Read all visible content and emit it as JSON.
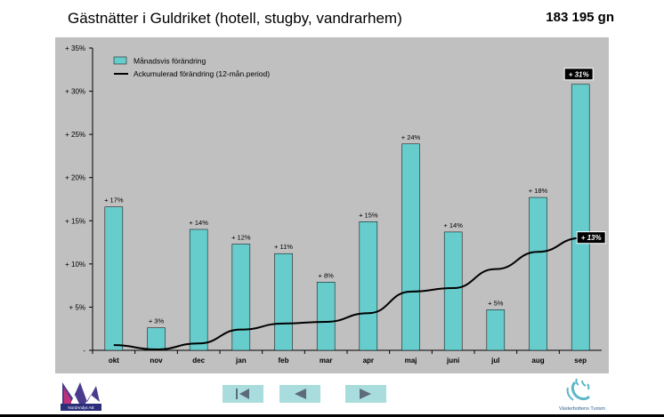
{
  "header": {
    "title": "Gästnätter i Guldriket (hotell, stugby, vandrarhem)",
    "total": "183 195 gn"
  },
  "chart_data": {
    "type": "bar",
    "categories": [
      "okt",
      "nov",
      "dec",
      "jan",
      "feb",
      "mar",
      "apr",
      "maj",
      "juni",
      "jul",
      "aug",
      "sep"
    ],
    "series": [
      {
        "name": "Månadsvis förändring",
        "type": "bar",
        "values": [
          17,
          3,
          14,
          12,
          11,
          8,
          15,
          24,
          14,
          5,
          18,
          31
        ],
        "labels": [
          "+ 17%",
          "+ 3%",
          "+ 14%",
          "+ 12%",
          "+ 11%",
          "+ 8%",
          "+ 15%",
          "+ 24%",
          "+ 14%",
          "+ 5%",
          "+ 18%",
          "+ 31%"
        ],
        "color": "#66cccc"
      },
      {
        "name": "Ackumulerad förändring (12-mån.period)",
        "type": "line",
        "values": [
          0.6,
          0.1,
          0.8,
          2.4,
          3.1,
          3.3,
          4.3,
          6.8,
          7.2,
          9.4,
          11.4,
          13
        ],
        "end_label": "+ 13%",
        "color": "#000000"
      }
    ],
    "bar_values_drawn": [
      16.6,
      2.6,
      14.0,
      12.3,
      11.2,
      7.9,
      14.9,
      23.9,
      13.7,
      4.7,
      17.7,
      30.8
    ],
    "y_ticks": [
      "-",
      "+ 5%",
      "+ 10%",
      "+ 15%",
      "+ 20%",
      "+ 25%",
      "+ 30%",
      "+ 35%"
    ],
    "ylim": [
      0,
      35
    ],
    "legend_position": "top-left",
    "grid": false,
    "plot_background": "#c0c0c0"
  },
  "footer": {
    "left_logo_text": "NordAndys AB",
    "right_logo_text": "Västerbottens Turism",
    "nav": {
      "first": "first",
      "prev": "prev",
      "next": "next"
    }
  }
}
